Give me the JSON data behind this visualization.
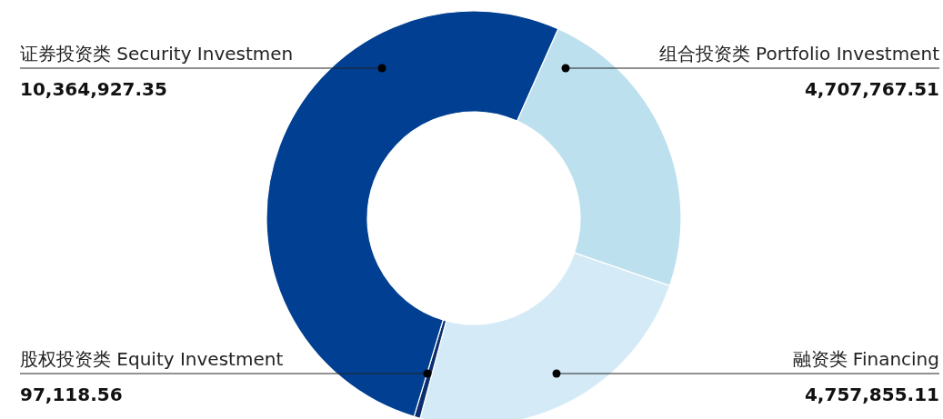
{
  "chart_data": {
    "type": "donut",
    "categories": [
      "组合投资类 Portfolio Investment",
      "融资类 Financing",
      "股权投资类 Equity Investment",
      "证券投资类 Security Investmen"
    ],
    "values": [
      4707767.51,
      4757855.11,
      97118.56,
      10364927.35
    ],
    "colors": [
      "#bde0ef",
      "#d4ebf7",
      "#0b2f6e",
      "#003f91"
    ],
    "value_labels": [
      "4,707,767.51",
      "4,757,855.11",
      "97,118.56",
      "10,364,927.35"
    ]
  }
}
